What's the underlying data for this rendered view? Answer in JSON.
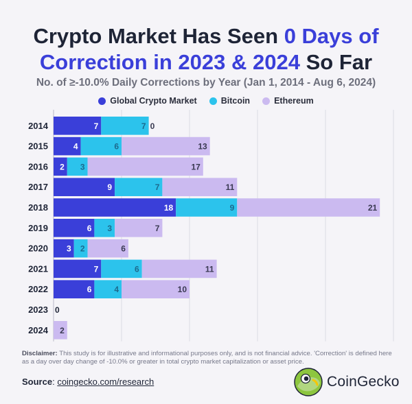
{
  "header": {
    "title_part1": "Crypto Market Has Seen ",
    "title_hl1": "0 Days of Correction in 2023 & 2024",
    "title_part2": " So Far",
    "subtitle": "No. of ≥-10.0% Daily Corrections by Year (Jan 1, 2014 - Aug 6, 2024)"
  },
  "colors": {
    "global": "#3a3fd9",
    "bitcoin": "#2cc3ec",
    "ethereum": "#cbbaf0",
    "accent_title": "#3a3fd9"
  },
  "chart_data": {
    "type": "bar",
    "orientation": "horizontal",
    "stacked": true,
    "title": "Crypto Market Has Seen 0 Days of Correction in 2023 & 2024 So Far",
    "subtitle": "No. of ≥-10.0% Daily Corrections by Year (Jan 1, 2014 - Aug 6, 2024)",
    "categories": [
      "2014",
      "2015",
      "2016",
      "2017",
      "2018",
      "2019",
      "2020",
      "2021",
      "2022",
      "2023",
      "2024"
    ],
    "series": [
      {
        "name": "Global Crypto Market",
        "values": [
          7,
          4,
          2,
          9,
          18,
          6,
          3,
          7,
          6,
          0,
          0
        ]
      },
      {
        "name": "Bitcoin",
        "values": [
          7,
          6,
          3,
          7,
          9,
          3,
          2,
          6,
          4,
          0,
          0
        ]
      },
      {
        "name": "Ethereum",
        "values": [
          0,
          13,
          17,
          11,
          21,
          7,
          6,
          11,
          10,
          0,
          2
        ]
      }
    ],
    "xlim": [
      0,
      52
    ],
    "grid": true,
    "legend_position": "top"
  },
  "footer": {
    "disclaimer_label": "Disclaimer:",
    "disclaimer_text": " This study is for illustrative and informational purposes only, and is not financial advice. 'Correction' is defined here as a day over day change of -10.0% or greater in total crypto market capitalization or asset price.",
    "source_label": "Source",
    "source_sep": ": ",
    "source_link": "coingecko.com/research",
    "brand": "CoinGecko"
  }
}
